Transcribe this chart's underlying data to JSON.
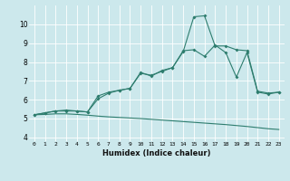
{
  "xlabel": "Humidex (Indice chaleur)",
  "background_color": "#cce8ec",
  "line_color": "#2e7d6e",
  "xlim": [
    -0.5,
    23.5
  ],
  "ylim": [
    3.8,
    11.0
  ],
  "yticks": [
    4,
    5,
    6,
    7,
    8,
    9,
    10
  ],
  "xticks": [
    0,
    1,
    2,
    3,
    4,
    5,
    6,
    7,
    8,
    9,
    10,
    11,
    12,
    13,
    14,
    15,
    16,
    17,
    18,
    19,
    20,
    21,
    22,
    23
  ],
  "series_peak_x": [
    0,
    1,
    2,
    3,
    4,
    5,
    6,
    7,
    8,
    9,
    10,
    11,
    12,
    13,
    14,
    15,
    16,
    17,
    18,
    19,
    20,
    21,
    22,
    23
  ],
  "series_peak_y": [
    5.2,
    5.3,
    5.4,
    5.45,
    5.4,
    5.35,
    6.05,
    6.35,
    6.5,
    6.6,
    7.45,
    7.25,
    7.55,
    7.7,
    8.55,
    10.4,
    10.45,
    8.85,
    8.85,
    8.65,
    8.6,
    6.45,
    6.35,
    6.4
  ],
  "series_mid_x": [
    0,
    1,
    2,
    3,
    4,
    5,
    6,
    7,
    8,
    9,
    10,
    11,
    12,
    13,
    14,
    15,
    16,
    17,
    18,
    19,
    20,
    21,
    22,
    23
  ],
  "series_mid_y": [
    5.2,
    5.3,
    5.4,
    5.4,
    5.4,
    5.35,
    6.2,
    6.4,
    6.5,
    6.6,
    7.4,
    7.3,
    7.5,
    7.7,
    8.6,
    8.65,
    8.3,
    8.9,
    8.5,
    7.2,
    8.5,
    6.4,
    6.3,
    6.4
  ],
  "series_low_x": [
    0,
    1,
    2,
    3,
    4,
    5,
    6,
    7,
    8,
    9,
    10,
    11,
    12,
    13,
    14,
    15,
    16,
    17,
    18,
    19,
    20,
    21,
    22,
    23
  ],
  "series_low_y": [
    5.2,
    5.22,
    5.25,
    5.25,
    5.22,
    5.18,
    5.13,
    5.09,
    5.06,
    5.03,
    5.0,
    4.96,
    4.92,
    4.88,
    4.84,
    4.8,
    4.76,
    4.72,
    4.68,
    4.63,
    4.58,
    4.52,
    4.46,
    4.42
  ]
}
